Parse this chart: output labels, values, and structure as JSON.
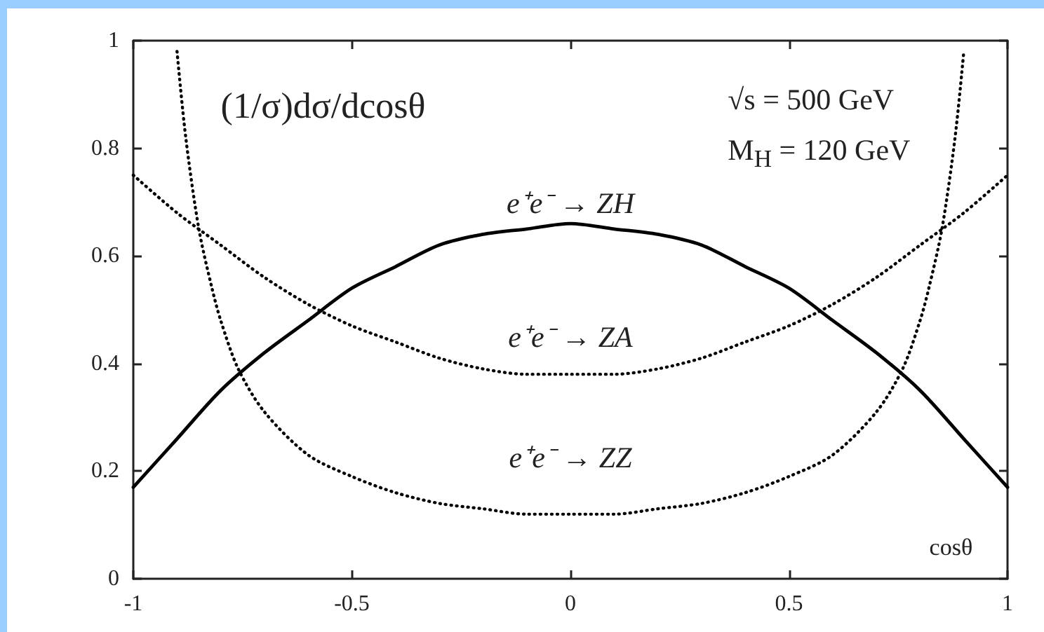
{
  "chart_data": {
    "type": "line",
    "xlabel": "cosθ",
    "ylabel": "(1/σ)dσ/dcosθ",
    "annotations": [
      "√s = 500 GeV",
      "M$_{H}$ = 120 GeV"
    ],
    "x": [
      -1,
      -0.9,
      -0.8,
      -0.7,
      -0.6,
      -0.5,
      -0.4,
      -0.3,
      -0.2,
      -0.1,
      0,
      0.1,
      0.2,
      0.3,
      0.4,
      0.5,
      0.6,
      0.7,
      0.8,
      0.9,
      1
    ],
    "series": [
      {
        "name": "e⁺e⁻ → ZH",
        "color": "#000000",
        "line_style": "solid",
        "values": [
          0.17,
          0.26,
          0.35,
          0.42,
          0.48,
          0.54,
          0.58,
          0.62,
          0.64,
          0.65,
          0.66,
          0.65,
          0.64,
          0.62,
          0.58,
          0.54,
          0.48,
          0.42,
          0.35,
          0.26,
          0.17
        ]
      },
      {
        "name": "e⁺e⁻ → ZA",
        "color": "#000000",
        "line_style": "dotted",
        "values": [
          0.75,
          0.68,
          0.62,
          0.56,
          0.51,
          0.47,
          0.44,
          0.41,
          0.39,
          0.38,
          0.38,
          0.38,
          0.39,
          0.41,
          0.44,
          0.47,
          0.51,
          0.56,
          0.62,
          0.68,
          0.75
        ]
      },
      {
        "name": "e⁺e⁻ → ZZ",
        "color": "#000000",
        "line_style": "dotted",
        "x": [
          -0.9,
          -0.88,
          -0.85,
          -0.82,
          -0.8,
          -0.76,
          -0.7,
          -0.6,
          -0.5,
          -0.4,
          -0.3,
          -0.2,
          -0.1,
          0,
          0.1,
          0.2,
          0.3,
          0.4,
          0.5,
          0.6,
          0.7,
          0.76,
          0.8,
          0.82,
          0.85,
          0.88,
          0.9
        ],
        "values": [
          0.98,
          0.82,
          0.65,
          0.54,
          0.48,
          0.39,
          0.31,
          0.23,
          0.19,
          0.16,
          0.14,
          0.13,
          0.12,
          0.12,
          0.12,
          0.13,
          0.14,
          0.16,
          0.19,
          0.23,
          0.31,
          0.39,
          0.48,
          0.54,
          0.65,
          0.82,
          0.98
        ]
      }
    ],
    "xlim": [
      -1,
      1
    ],
    "ylim": [
      0,
      1
    ],
    "xticks": [
      -1,
      -0.5,
      0,
      0.5,
      1
    ],
    "yticks": [
      0,
      0.2,
      0.4,
      0.6,
      0.8,
      1
    ]
  }
}
